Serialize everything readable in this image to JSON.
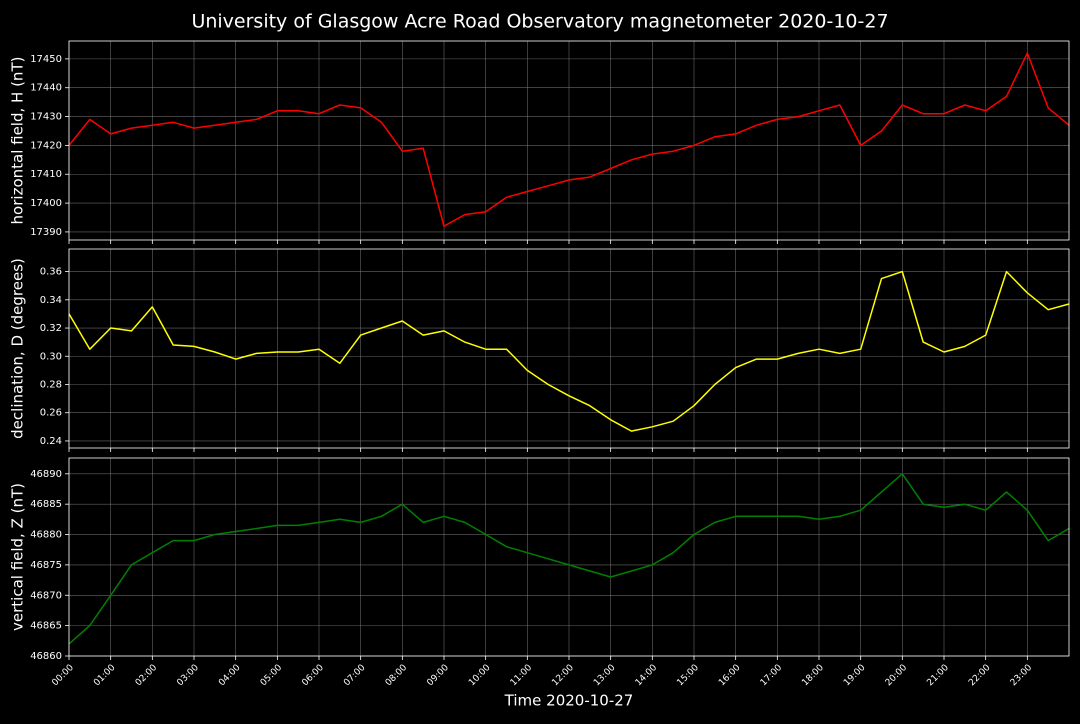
{
  "chart_data": [
    {
      "type": "line",
      "title": "University of Glasgow Acre Road Observatory magnetometer 2020-10-27",
      "ylabel": "horizontal field, H (nT)",
      "color": "#ff0000",
      "grid": true,
      "x": [
        "00:00",
        "00:30",
        "01:00",
        "01:30",
        "02:00",
        "02:30",
        "03:00",
        "03:30",
        "04:00",
        "04:30",
        "05:00",
        "05:30",
        "06:00",
        "06:30",
        "07:00",
        "07:30",
        "08:00",
        "08:30",
        "09:00",
        "09:30",
        "10:00",
        "10:30",
        "11:00",
        "11:30",
        "12:00",
        "12:30",
        "13:00",
        "13:30",
        "14:00",
        "14:30",
        "15:00",
        "15:30",
        "16:00",
        "16:30",
        "17:00",
        "17:30",
        "18:00",
        "18:30",
        "19:00",
        "19:30",
        "20:00",
        "20:30",
        "21:00",
        "21:30",
        "22:00",
        "22:30",
        "23:00",
        "23:30",
        "24:00"
      ],
      "values": [
        17420,
        17429,
        17424,
        17426,
        17427,
        17428,
        17426,
        17427,
        17428,
        17429,
        17432,
        17432,
        17431,
        17434,
        17433,
        17428,
        17418,
        17419,
        17392,
        17396,
        17397,
        17402,
        17404,
        17406,
        17408,
        17409,
        17412,
        17415,
        17417,
        17418,
        17420,
        17423,
        17424,
        17427,
        17429,
        17430,
        17432,
        17434,
        17420,
        17425,
        17434,
        17431,
        17431,
        17434,
        17432,
        17437,
        17452,
        17433,
        17427
      ],
      "xlim": [
        "00:00",
        "24:00"
      ],
      "xticks": [
        "00:00",
        "01:00",
        "02:00",
        "03:00",
        "04:00",
        "05:00",
        "06:00",
        "07:00",
        "08:00",
        "09:00",
        "10:00",
        "11:00",
        "12:00",
        "13:00",
        "14:00",
        "15:00",
        "16:00",
        "17:00",
        "18:00",
        "19:00",
        "20:00",
        "21:00",
        "22:00",
        "23:00"
      ],
      "ylim": [
        17387.2,
        17456.2
      ],
      "yticks": [
        17390,
        17400,
        17410,
        17420,
        17430,
        17440,
        17450
      ]
    },
    {
      "type": "line",
      "ylabel": "declination, D (degrees)",
      "color": "#ffff00",
      "grid": true,
      "x": [
        "00:00",
        "00:30",
        "01:00",
        "01:30",
        "02:00",
        "02:30",
        "03:00",
        "03:30",
        "04:00",
        "04:30",
        "05:00",
        "05:30",
        "06:00",
        "06:30",
        "07:00",
        "07:30",
        "08:00",
        "08:30",
        "09:00",
        "09:30",
        "10:00",
        "10:30",
        "11:00",
        "11:30",
        "12:00",
        "12:30",
        "13:00",
        "13:30",
        "14:00",
        "14:30",
        "15:00",
        "15:30",
        "16:00",
        "16:30",
        "17:00",
        "17:30",
        "18:00",
        "18:30",
        "19:00",
        "19:30",
        "20:00",
        "20:30",
        "21:00",
        "21:30",
        "22:00",
        "22:30",
        "23:00",
        "23:30",
        "24:00"
      ],
      "values": [
        0.33,
        0.305,
        0.32,
        0.318,
        0.335,
        0.308,
        0.307,
        0.303,
        0.298,
        0.302,
        0.303,
        0.303,
        0.305,
        0.295,
        0.315,
        0.32,
        0.325,
        0.315,
        0.318,
        0.31,
        0.305,
        0.305,
        0.29,
        0.28,
        0.272,
        0.265,
        0.255,
        0.247,
        0.25,
        0.254,
        0.265,
        0.28,
        0.292,
        0.298,
        0.298,
        0.302,
        0.305,
        0.302,
        0.305,
        0.355,
        0.36,
        0.31,
        0.303,
        0.307,
        0.315,
        0.36,
        0.345,
        0.333,
        0.337
      ],
      "xlim": [
        "00:00",
        "24:00"
      ],
      "xticks": [
        "00:00",
        "01:00",
        "02:00",
        "03:00",
        "04:00",
        "05:00",
        "06:00",
        "07:00",
        "08:00",
        "09:00",
        "10:00",
        "11:00",
        "12:00",
        "13:00",
        "14:00",
        "15:00",
        "16:00",
        "17:00",
        "18:00",
        "19:00",
        "20:00",
        "21:00",
        "22:00",
        "23:00"
      ],
      "ylim": [
        0.235,
        0.376
      ],
      "yticks": [
        0.24,
        0.26,
        0.28,
        {
          "value": 0.3,
          "label": "0.30"
        },
        0.32,
        0.34,
        0.36
      ]
    },
    {
      "type": "line",
      "ylabel": "vertical field, Z (nT)",
      "xlabel": "Time 2020-10-27",
      "color": "#008000",
      "grid": true,
      "x": [
        "00:00",
        "00:30",
        "01:00",
        "01:30",
        "02:00",
        "02:30",
        "03:00",
        "03:30",
        "04:00",
        "04:30",
        "05:00",
        "05:30",
        "06:00",
        "06:30",
        "07:00",
        "07:30",
        "08:00",
        "08:30",
        "09:00",
        "09:30",
        "10:00",
        "10:30",
        "11:00",
        "11:30",
        "12:00",
        "12:30",
        "13:00",
        "13:30",
        "14:00",
        "14:30",
        "15:00",
        "15:30",
        "16:00",
        "16:30",
        "17:00",
        "17:30",
        "18:00",
        "18:30",
        "19:00",
        "19:30",
        "20:00",
        "20:30",
        "21:00",
        "21:30",
        "22:00",
        "22:30",
        "23:00",
        "23:30",
        "24:00"
      ],
      "values": [
        46862,
        46865,
        46870,
        46875,
        46877,
        46879,
        46879,
        46880,
        46880.5,
        46881,
        46881.5,
        46881.5,
        46882,
        46882.5,
        46882,
        46883,
        46885,
        46882,
        46883,
        46882,
        46880,
        46878,
        46877,
        46876,
        46875,
        46874,
        46873,
        46874,
        46875,
        46877,
        46880,
        46882,
        46883,
        46883,
        46883,
        46883,
        46882.5,
        46883,
        46884,
        46887,
        46890,
        46885,
        46884.5,
        46885,
        46884,
        46887,
        46884,
        46879,
        46881
      ],
      "xlim": [
        "00:00",
        "24:00"
      ],
      "xticks": [
        "00:00",
        "01:00",
        "02:00",
        "03:00",
        "04:00",
        "05:00",
        "06:00",
        "07:00",
        "08:00",
        "09:00",
        "10:00",
        "11:00",
        "12:00",
        "13:00",
        "14:00",
        "15:00",
        "16:00",
        "17:00",
        "18:00",
        "19:00",
        "20:00",
        "21:00",
        "22:00",
        "23:00"
      ],
      "ylim": [
        46860,
        46892.6
      ],
      "yticks": [
        46860,
        46865,
        46870,
        46875,
        46880,
        46885,
        46890
      ]
    }
  ]
}
